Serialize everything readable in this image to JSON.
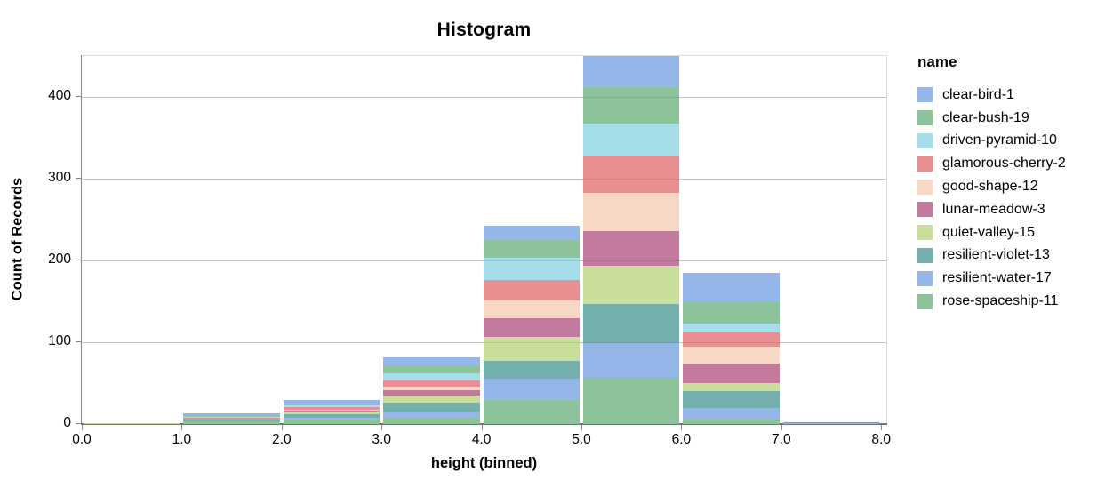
{
  "title": "Histogram",
  "x_axis": {
    "title": "height (binned)",
    "tick_labels": [
      "0.0",
      "1.0",
      "2.0",
      "3.0",
      "4.0",
      "5.0",
      "6.0",
      "7.0",
      "8.0"
    ],
    "domain": [
      0,
      8
    ]
  },
  "y_axis": {
    "title": "Count of Records",
    "tick_values": [
      0,
      100,
      200,
      300,
      400
    ],
    "domain": [
      0,
      450
    ]
  },
  "legend": {
    "title": "name"
  },
  "chart_data": {
    "type": "bar",
    "subtype": "stacked-histogram",
    "title": "Histogram",
    "xlabel": "height (binned)",
    "ylabel": "Count of Records",
    "bin_edges": [
      0,
      1,
      2,
      3,
      4,
      5,
      6,
      7,
      8
    ],
    "xlim": [
      0,
      8
    ],
    "ylim": [
      0,
      450
    ],
    "grid": true,
    "legend_position": "right",
    "bin_totals": [
      1,
      13,
      29,
      82,
      243,
      450,
      185,
      2
    ],
    "series": [
      {
        "name": "clear-bird-1",
        "color": "#94b6e8",
        "values": [
          0,
          3,
          5,
          11,
          18,
          38,
          36,
          0
        ]
      },
      {
        "name": "clear-bush-19",
        "color": "#8dc39b",
        "values": [
          0,
          1,
          1,
          9,
          22,
          44,
          26,
          0
        ]
      },
      {
        "name": "driven-pyramid-10",
        "color": "#a5dee9",
        "values": [
          0,
          1,
          2,
          9,
          27,
          41,
          11,
          0
        ]
      },
      {
        "name": "glamorous-cherry-2",
        "color": "#e88f92",
        "values": [
          0,
          2,
          4,
          7,
          25,
          44,
          17,
          0
        ]
      },
      {
        "name": "good-shape-12",
        "color": "#f7d8c4",
        "values": [
          0,
          0,
          1,
          5,
          22,
          47,
          21,
          0
        ]
      },
      {
        "name": "lunar-meadow-3",
        "color": "#c27a9f",
        "values": [
          0,
          0,
          2,
          6,
          22,
          43,
          24,
          1
        ]
      },
      {
        "name": "quiet-valley-15",
        "color": "#cade9c",
        "values": [
          1,
          1,
          2,
          9,
          30,
          46,
          10,
          0
        ]
      },
      {
        "name": "resilient-violet-13",
        "color": "#73b0ad",
        "values": [
          0,
          2,
          4,
          11,
          22,
          48,
          20,
          0
        ]
      },
      {
        "name": "resilient-water-17",
        "color": "#94b6e8",
        "values": [
          0,
          0,
          3,
          7,
          26,
          42,
          15,
          1
        ]
      },
      {
        "name": "rose-spaceship-11",
        "color": "#8dc39b",
        "values": [
          0,
          3,
          5,
          8,
          29,
          57,
          5,
          0
        ]
      }
    ]
  }
}
